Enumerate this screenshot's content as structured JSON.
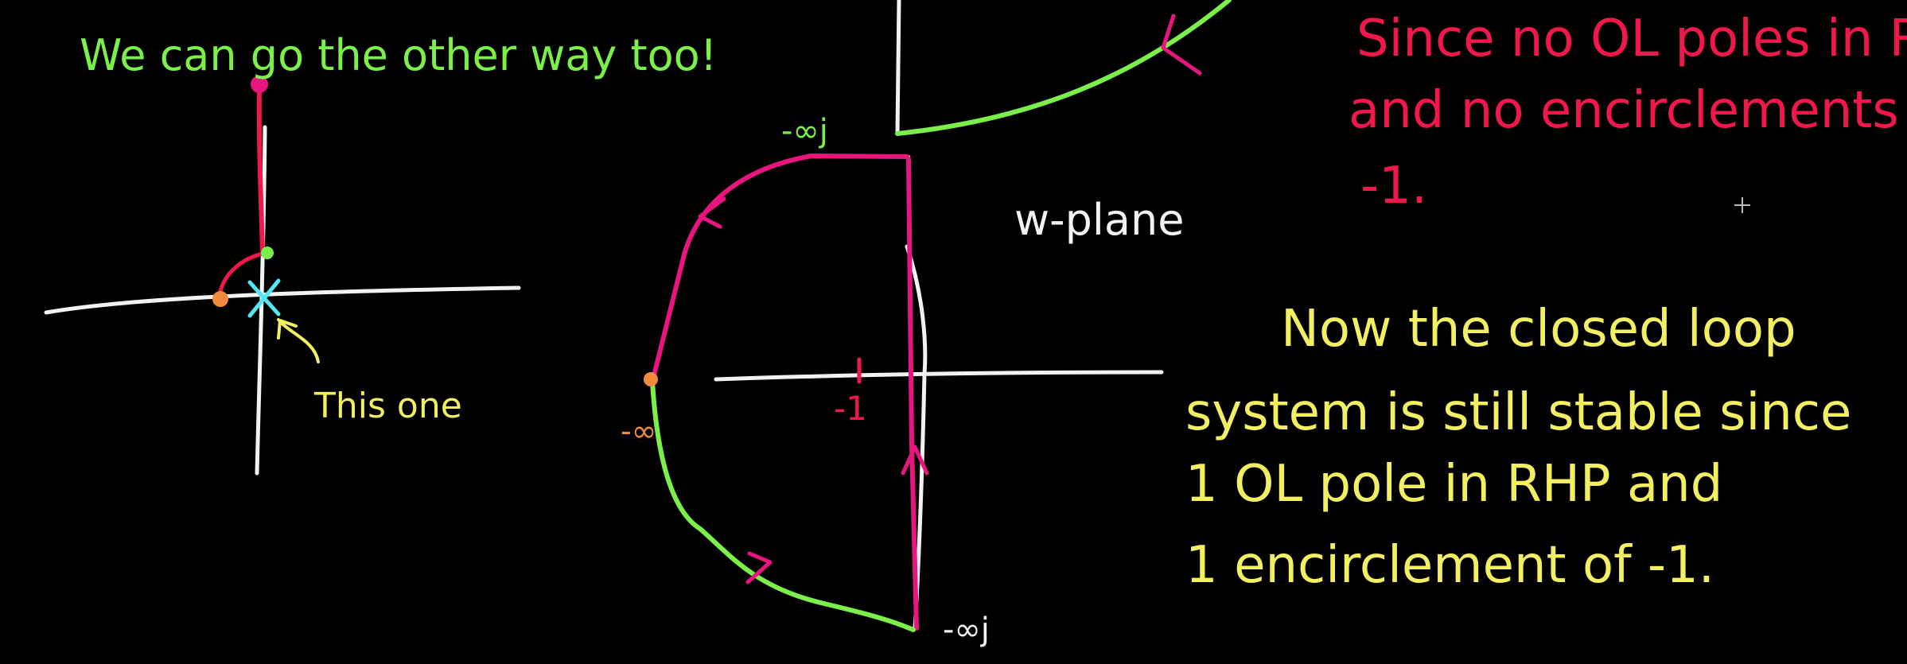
{
  "notes": {
    "green_heading": "We can go the other way too!",
    "this_one": "This one",
    "w_plane": "w-plane",
    "red_line1": "Since no OL poles in RHP",
    "red_line2": "and no encirclements of",
    "red_line3": "-1.",
    "yellow_line1": "Now the closed loop",
    "yellow_line2": "system is still stable since",
    "yellow_line3": "1 OL pole in RHP and",
    "yellow_line4": "1 encirclement of -1."
  },
  "plot_labels": {
    "neg_inf_j_top": "-∞j",
    "neg_inf_j_bottom": "-∞j",
    "neg_inf": "-∞",
    "neg_one": "-1"
  },
  "colors": {
    "background": "#000000",
    "white": "#f2f2f2",
    "green": "#7cf04a",
    "magenta": "#e8157f",
    "red": "#f0184a",
    "yellow": "#f2ef62",
    "cyan": "#54e6f2",
    "orange": "#f08a3c"
  }
}
